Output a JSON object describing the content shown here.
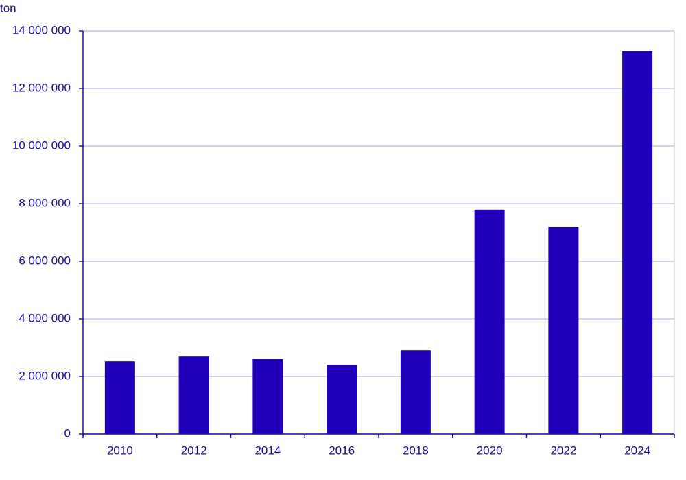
{
  "chart_data": {
    "type": "bar",
    "y_label": "ton",
    "categories": [
      "2010",
      "2012",
      "2014",
      "2016",
      "2018",
      "2020",
      "2022",
      "2024"
    ],
    "values": [
      2520000,
      2710000,
      2600000,
      2400000,
      2900000,
      7790000,
      7190000,
      13290000
    ],
    "color": "#2200bb",
    "ylim": [
      0,
      14000000
    ],
    "yticks": [
      0,
      {
        "value": 2000000,
        "label": "2 000 000"
      },
      {
        "value": 4000000,
        "label": "4 000 000"
      },
      {
        "value": 6000000,
        "label": "6 000 000"
      },
      {
        "value": 8000000,
        "label": "8 000 000"
      },
      {
        "value": 10000000,
        "label": "10 000 000"
      },
      {
        "value": 12000000,
        "label": "12 000 000"
      },
      {
        "value": 14000000,
        "label": "14 000 000"
      }
    ],
    "grid": true
  }
}
